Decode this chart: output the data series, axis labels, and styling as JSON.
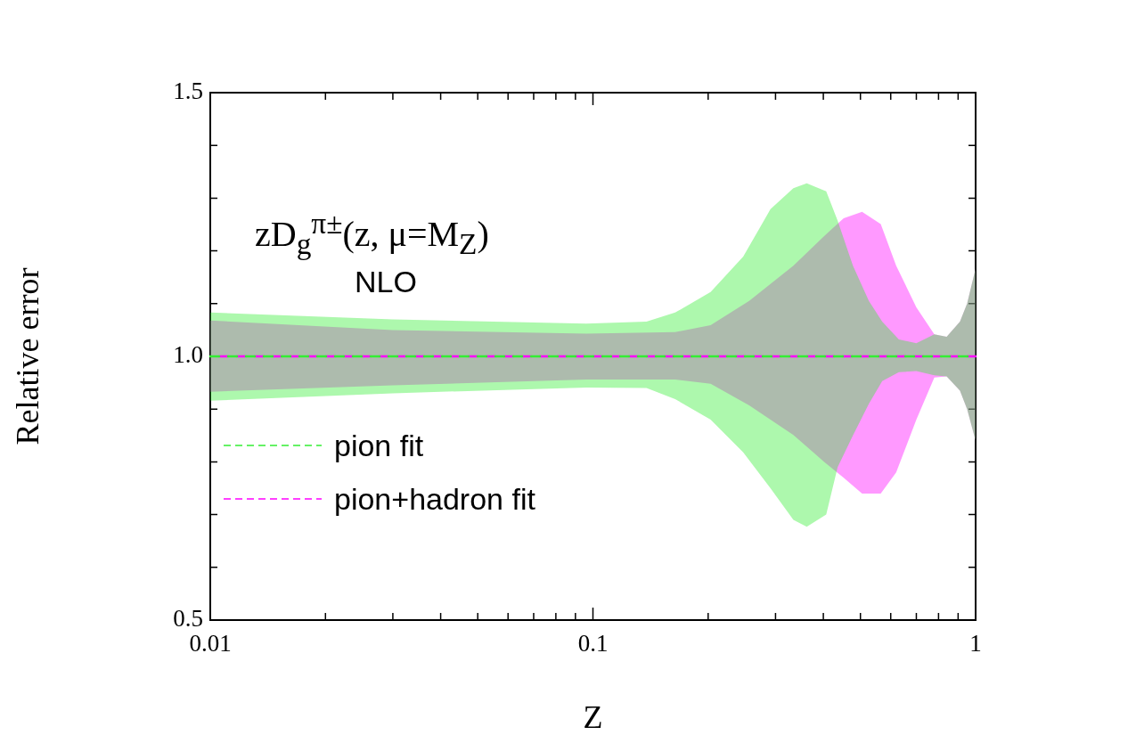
{
  "chart_data": {
    "type": "line",
    "xlabel": "Z",
    "ylabel": "Relative error",
    "log": "x",
    "xlim": [
      0.01,
      1
    ],
    "ylim": [
      0.5,
      1.5
    ],
    "xticks": [
      0.01,
      {
        "value": 0.02,
        "label": null
      },
      {
        "value": 0.03,
        "label": null
      },
      {
        "value": 0.04,
        "label": null
      },
      {
        "value": 0.05,
        "label": null
      },
      {
        "value": 0.06,
        "label": null
      },
      {
        "value": 0.07,
        "label": null
      },
      {
        "value": 0.08,
        "label": null
      },
      {
        "value": 0.09,
        "label": null
      },
      0.1,
      {
        "value": 0.2,
        "label": null
      },
      {
        "value": 0.3,
        "label": null
      },
      {
        "value": 0.4,
        "label": null
      },
      {
        "value": 0.5,
        "label": null
      },
      {
        "value": 0.6,
        "label": null
      },
      {
        "value": 0.7,
        "label": null
      },
      {
        "value": 0.8,
        "label": null
      },
      {
        "value": 0.9,
        "label": null
      },
      1
    ],
    "yticks": [
      0.5,
      {
        "value": 0.6,
        "label": null
      },
      {
        "value": 0.7,
        "label": null
      },
      {
        "value": 0.8,
        "label": null
      },
      {
        "value": 0.9,
        "label": null
      },
      {
        "value": 1,
        "label": "1.0"
      },
      {
        "value": 1.1,
        "label": null
      },
      {
        "value": 1.2,
        "label": null
      },
      {
        "value": 1.3,
        "label": null
      },
      {
        "value": 1.4,
        "label": null
      },
      1.5
    ],
    "grid": false,
    "legend": "left",
    "annotations": [
      "zD$_{g}$$^{π±}$(z, μ=M$_{Z}$)",
      "NLO"
    ],
    "series": [
      {
        "name": "pion fit",
        "color": "#33ee33",
        "line_style": "dashed",
        "x": [
          0.01,
          0.03,
          0.096,
          0.138,
          0.164,
          0.203,
          0.247,
          0.291,
          0.334,
          0.362,
          0.407,
          0.436,
          0.478,
          0.526,
          0.57,
          0.63,
          0.7,
          0.78,
          0.84,
          0.91,
          0.95,
          1.0
        ],
        "values": [
          1,
          1,
          1,
          1,
          1,
          1,
          1,
          1,
          1,
          1,
          1,
          1,
          1,
          1,
          1,
          1,
          1,
          1,
          1,
          1,
          1,
          1
        ],
        "upper": [
          1.083,
          1.07,
          1.062,
          1.066,
          1.083,
          1.122,
          1.189,
          1.279,
          1.319,
          1.328,
          1.313,
          1.257,
          1.172,
          1.105,
          1.066,
          1.032,
          1.025,
          1.042,
          1.037,
          1.066,
          1.1,
          1.167
        ],
        "lower": [
          0.916,
          0.93,
          0.941,
          0.94,
          0.919,
          0.88,
          0.818,
          0.75,
          0.69,
          0.677,
          0.7,
          0.79,
          0.85,
          0.91,
          0.953,
          0.97,
          0.972,
          0.964,
          0.962,
          0.935,
          0.9,
          0.84
        ]
      },
      {
        "name": "pion+hadron fit",
        "color": "#ff00ff",
        "line_style": "dashed",
        "x": [
          0.01,
          0.03,
          0.096,
          0.164,
          0.203,
          0.256,
          0.334,
          0.402,
          0.452,
          0.505,
          0.565,
          0.62,
          0.7,
          0.78,
          0.84,
          0.91,
          0.95,
          1.0
        ],
        "values": [
          1,
          1,
          1,
          1,
          1,
          1,
          1,
          1,
          1,
          1,
          1,
          1,
          1,
          1,
          1,
          1,
          1,
          1
        ],
        "upper": [
          1.068,
          1.05,
          1.043,
          1.046,
          1.059,
          1.105,
          1.172,
          1.228,
          1.262,
          1.274,
          1.251,
          1.172,
          1.093,
          1.042,
          1.037,
          1.066,
          1.1,
          1.167
        ],
        "lower": [
          0.933,
          0.945,
          0.956,
          0.956,
          0.948,
          0.907,
          0.851,
          0.8,
          0.77,
          0.74,
          0.74,
          0.78,
          0.88,
          0.96,
          0.962,
          0.935,
          0.9,
          0.84
        ]
      }
    ]
  }
}
